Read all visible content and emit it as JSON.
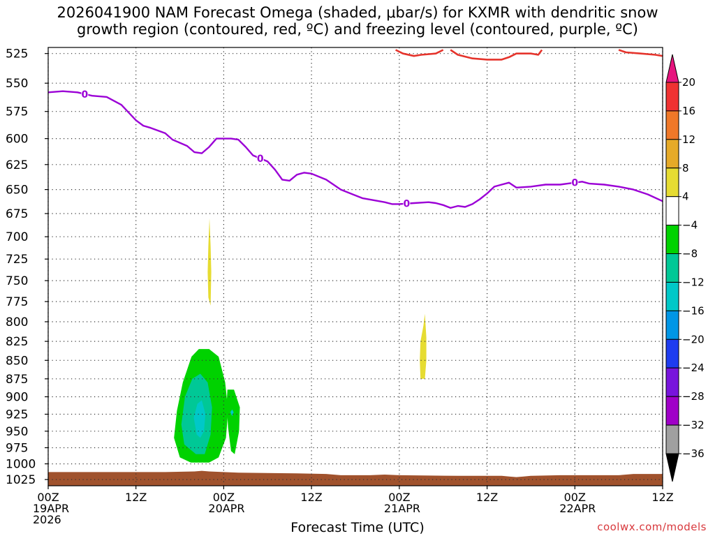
{
  "title_line1": "2026041900 NAM Forecast Omega (shaded, μbar/s) for KXMR with dendritic snow",
  "title_line2": "growth region (contoured, red, ºC) and freezing level (contoured, purple, ºC)",
  "xlabel": "Forecast Time (UTC)",
  "credit": "coolwx.com/models",
  "chart_data": {
    "type": "contour",
    "x_domain": [
      0,
      84
    ],
    "y_domain_hpa": [
      520,
      1035
    ],
    "y_ticks": [
      525,
      550,
      575,
      600,
      625,
      650,
      675,
      700,
      725,
      750,
      775,
      800,
      825,
      850,
      875,
      900,
      925,
      950,
      975,
      1000,
      1025
    ],
    "x_ticks": [
      {
        "hour": 0,
        "l1": "00Z",
        "l2": "19APR",
        "l3": "2026"
      },
      {
        "hour": 12,
        "l1": "12Z",
        "l2": "",
        "l3": ""
      },
      {
        "hour": 24,
        "l1": "00Z",
        "l2": "20APR",
        "l3": ""
      },
      {
        "hour": 36,
        "l1": "12Z",
        "l2": "",
        "l3": ""
      },
      {
        "hour": 48,
        "l1": "00Z",
        "l2": "21APR",
        "l3": ""
      },
      {
        "hour": 60,
        "l1": "12Z",
        "l2": "",
        "l3": ""
      },
      {
        "hour": 72,
        "l1": "00Z",
        "l2": "22APR",
        "l3": ""
      },
      {
        "hour": 84,
        "l1": "12Z",
        "l2": "",
        "l3": ""
      }
    ],
    "freezing_level": {
      "label": "0",
      "color": "#9b00d6",
      "label_hours": [
        5,
        29,
        49,
        72
      ],
      "points": [
        [
          0,
          558
        ],
        [
          2,
          557
        ],
        [
          4,
          558
        ],
        [
          6,
          561
        ],
        [
          8,
          562
        ],
        [
          10,
          569
        ],
        [
          12,
          583
        ],
        [
          13,
          588
        ],
        [
          14,
          590
        ],
        [
          16,
          595
        ],
        [
          17,
          601
        ],
        [
          19,
          607
        ],
        [
          20,
          613
        ],
        [
          21,
          614
        ],
        [
          22,
          608
        ],
        [
          23,
          600
        ],
        [
          24,
          600
        ],
        [
          25,
          600
        ],
        [
          26,
          601
        ],
        [
          27,
          608
        ],
        [
          28,
          616
        ],
        [
          29,
          619
        ],
        [
          30,
          622
        ],
        [
          31,
          630
        ],
        [
          32,
          640
        ],
        [
          33,
          641
        ],
        [
          34,
          635
        ],
        [
          35,
          633
        ],
        [
          36,
          634
        ],
        [
          38,
          640
        ],
        [
          39,
          645
        ],
        [
          40,
          650
        ],
        [
          42,
          656
        ],
        [
          43,
          659
        ],
        [
          46,
          663
        ],
        [
          47,
          665
        ],
        [
          48,
          665
        ],
        [
          50,
          664
        ],
        [
          52,
          663
        ],
        [
          53,
          664
        ],
        [
          54,
          666
        ],
        [
          55,
          669
        ],
        [
          56,
          667
        ],
        [
          57,
          668
        ],
        [
          58,
          665
        ],
        [
          59,
          660
        ],
        [
          60,
          654
        ],
        [
          61,
          647
        ],
        [
          62,
          645
        ],
        [
          63,
          643
        ],
        [
          64,
          648
        ],
        [
          66,
          647
        ],
        [
          68,
          645
        ],
        [
          70,
          645
        ],
        [
          71,
          644
        ],
        [
          72,
          643
        ],
        [
          73,
          642
        ],
        [
          74,
          644
        ],
        [
          76,
          645
        ],
        [
          78,
          647
        ],
        [
          80,
          650
        ],
        [
          82,
          655
        ],
        [
          84,
          662
        ]
      ]
    },
    "dgz_isotherm": {
      "color": "#e5342c",
      "segments": [
        [
          [
            47.5,
            522
          ],
          [
            48.5,
            525
          ],
          [
            50,
            527
          ],
          [
            51,
            526
          ],
          [
            53,
            525
          ],
          [
            54,
            522
          ]
        ],
        [
          [
            55,
            522
          ],
          [
            56,
            526
          ],
          [
            58,
            529
          ],
          [
            60,
            530
          ],
          [
            62,
            530
          ],
          [
            63,
            528
          ],
          [
            64,
            525
          ],
          [
            66,
            525
          ],
          [
            67,
            526
          ],
          [
            67.5,
            522
          ]
        ],
        [
          [
            78,
            522
          ],
          [
            79,
            524
          ],
          [
            81,
            525
          ],
          [
            83,
            526
          ],
          [
            84,
            527
          ]
        ]
      ]
    },
    "terrain": {
      "color": "#a0522d",
      "top_points": [
        [
          0,
          1013
        ],
        [
          8,
          1013
        ],
        [
          16,
          1013
        ],
        [
          20,
          1012
        ],
        [
          21,
          1011
        ],
        [
          22,
          1012
        ],
        [
          26,
          1014
        ],
        [
          34,
          1015
        ],
        [
          38,
          1016
        ],
        [
          40,
          1018
        ],
        [
          44,
          1018
        ],
        [
          46,
          1017
        ],
        [
          48,
          1018
        ],
        [
          56,
          1019
        ],
        [
          62,
          1019
        ],
        [
          63,
          1020
        ],
        [
          64,
          1021
        ],
        [
          65,
          1020
        ],
        [
          66,
          1019
        ],
        [
          70,
          1018
        ],
        [
          78,
          1018
        ],
        [
          80,
          1016
        ],
        [
          84,
          1016
        ]
      ]
    },
    "omega_shading": [
      {
        "color": "#00d200",
        "polygon": [
          [
            18,
            990
          ],
          [
            17.2,
            960
          ],
          [
            17.6,
            920
          ],
          [
            18.4,
            880
          ],
          [
            19.6,
            845
          ],
          [
            20.6,
            835
          ],
          [
            22,
            835
          ],
          [
            23.3,
            845
          ],
          [
            24.2,
            880
          ],
          [
            24.6,
            920
          ],
          [
            24.3,
            960
          ],
          [
            23.3,
            990
          ],
          [
            22,
            998
          ],
          [
            19.5,
            998
          ]
        ]
      },
      {
        "color": "#00d200",
        "polygon": [
          [
            24.5,
            890
          ],
          [
            25.4,
            890
          ],
          [
            26.2,
            915
          ],
          [
            26.1,
            950
          ],
          [
            25.5,
            985
          ],
          [
            25,
            980
          ],
          [
            24.6,
            945
          ],
          [
            24.4,
            910
          ]
        ]
      },
      {
        "color": "#00c896",
        "polygon": [
          [
            18.6,
            970
          ],
          [
            18.2,
            940
          ],
          [
            18.7,
            900
          ],
          [
            19.7,
            875
          ],
          [
            20.8,
            868
          ],
          [
            21.8,
            880
          ],
          [
            22.4,
            915
          ],
          [
            22.2,
            955
          ],
          [
            21.4,
            985
          ],
          [
            20.2,
            985
          ]
        ]
      },
      {
        "color": "#00c8c8",
        "polygon": [
          [
            20.3,
            955
          ],
          [
            19.9,
            930
          ],
          [
            20.4,
            910
          ],
          [
            21.0,
            905
          ],
          [
            21.5,
            925
          ],
          [
            21.3,
            950
          ],
          [
            20.8,
            960
          ]
        ]
      },
      {
        "color": "#e6dc32",
        "polygon": [
          [
            21.9,
            770
          ],
          [
            21.8,
            740
          ],
          [
            21.9,
            710
          ],
          [
            22.05,
            680
          ],
          [
            22.2,
            710
          ],
          [
            22.3,
            740
          ],
          [
            22.2,
            780
          ]
        ]
      },
      {
        "color": "#e6dc32",
        "polygon": [
          [
            50.9,
            875
          ],
          [
            50.8,
            850
          ],
          [
            50.9,
            825
          ],
          [
            51.3,
            805
          ],
          [
            51.5,
            790
          ],
          [
            51.7,
            820
          ],
          [
            51.7,
            850
          ],
          [
            51.5,
            875
          ]
        ]
      },
      {
        "color": "#00c8c8",
        "polygon": [
          [
            24.9,
            922
          ],
          [
            25.15,
            918
          ],
          [
            25.35,
            922
          ],
          [
            25.15,
            928
          ]
        ]
      }
    ],
    "colorbar": {
      "labels": [
        "20",
        "16",
        "12",
        "8",
        "4",
        "−4",
        "−8",
        "−12",
        "−16",
        "−20",
        "−24",
        "−28",
        "−32",
        "−36"
      ],
      "colors_top_to_bottom": [
        "#e6147e",
        "#f03232",
        "#f07828",
        "#e6aa28",
        "#e6dc32",
        "#ffffff",
        "#00d200",
        "#00c896",
        "#00c8c8",
        "#0096e6",
        "#1e3cf0",
        "#7814dc",
        "#a000c8",
        "#a0a0a0",
        "#000000"
      ]
    }
  }
}
